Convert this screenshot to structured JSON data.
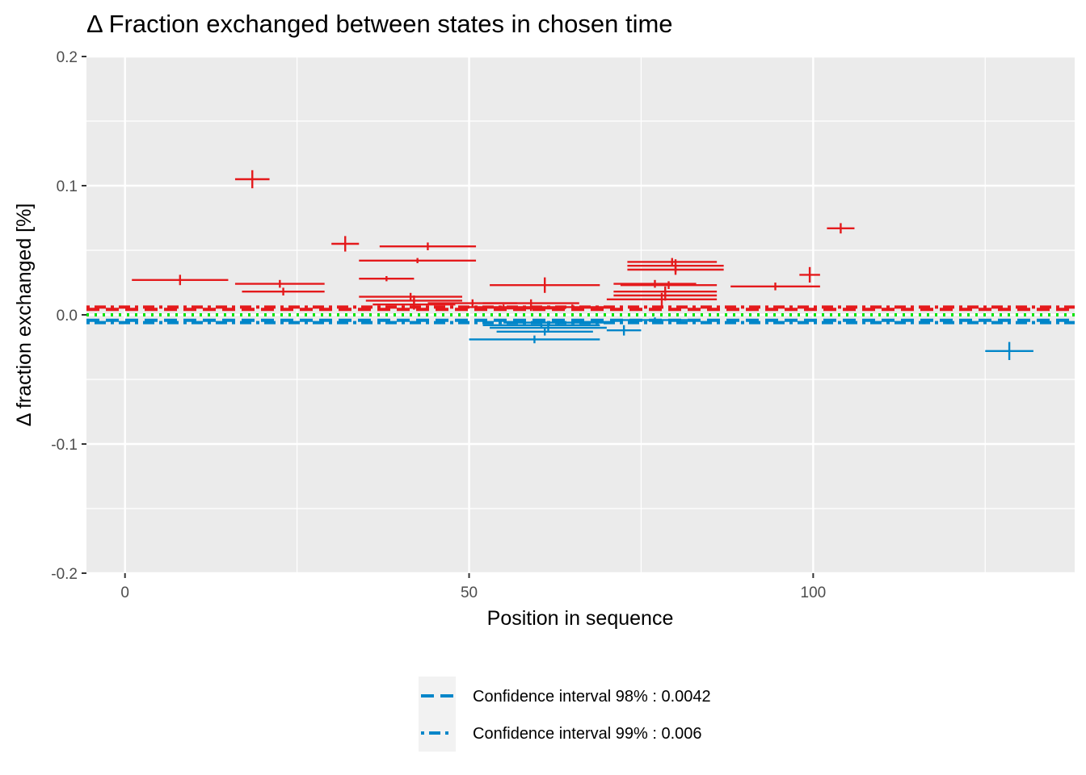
{
  "chart_data": {
    "type": "scatter",
    "title": "Δ Fraction exchanged between states in chosen time",
    "xlabel": "Position in sequence",
    "ylabel": "Δ fraction exchanged [%]",
    "xlim": [
      -5.6,
      138
    ],
    "ylim": [
      -0.2,
      0.2
    ],
    "x_ticks": [
      0,
      50,
      100
    ],
    "x_tick_labels": [
      "0",
      "50",
      "100"
    ],
    "y_ticks": [
      -0.2,
      -0.1,
      0.0,
      0.1,
      0.2
    ],
    "y_tick_labels": [
      "-0.2",
      "-0.1",
      "0.0",
      "0.1",
      "0.2"
    ],
    "grid": true,
    "panel_background": "#EBEBEB",
    "grid_color": "#FFFFFF",
    "colors": {
      "positive": "#E41A1C",
      "negative": "#0086C9",
      "zero_line": "#00E400"
    },
    "reference_lines": [
      {
        "y": 0.0042,
        "color": "#E41A1C",
        "linetype": "longdash"
      },
      {
        "y": 0.006,
        "color": "#E41A1C",
        "linetype": "dotdash"
      },
      {
        "y": -0.0042,
        "color": "#0086C9",
        "linetype": "longdash"
      },
      {
        "y": -0.006,
        "color": "#0086C9",
        "linetype": "dotdash"
      },
      {
        "y": 0.0,
        "color": "#00E400",
        "linetype": "dotted"
      }
    ],
    "series": [
      {
        "color": "#E41A1C",
        "points": [
          {
            "start": 1,
            "end": 15,
            "y": 0.027,
            "err": 0.004
          },
          {
            "start": 16,
            "end": 21,
            "y": 0.105,
            "err": 0.007
          },
          {
            "start": 16,
            "end": 29,
            "y": 0.024,
            "err": 0.003
          },
          {
            "start": 17,
            "end": 29,
            "y": 0.018,
            "err": 0.003
          },
          {
            "start": 30,
            "end": 34,
            "y": 0.055,
            "err": 0.006
          },
          {
            "start": 37,
            "end": 51,
            "y": 0.053,
            "err": 0.003
          },
          {
            "start": 34,
            "end": 51,
            "y": 0.042,
            "err": 0.002
          },
          {
            "start": 34,
            "end": 42,
            "y": 0.028,
            "err": 0.002
          },
          {
            "start": 34,
            "end": 49,
            "y": 0.014,
            "err": 0.003
          },
          {
            "start": 35,
            "end": 49,
            "y": 0.011,
            "err": 0.004
          },
          {
            "start": 36,
            "end": 48,
            "y": 0.008,
            "err": 0.004
          },
          {
            "start": 44,
            "end": 57,
            "y": 0.009,
            "err": 0.003
          },
          {
            "start": 53,
            "end": 69,
            "y": 0.023,
            "err": 0.006
          },
          {
            "start": 50,
            "end": 60,
            "y": 0.006,
            "err": 0.002
          },
          {
            "start": 52,
            "end": 66,
            "y": 0.009,
            "err": 0.003
          },
          {
            "start": 54,
            "end": 64,
            "y": 0.005,
            "err": 0.002
          },
          {
            "start": 60,
            "end": 70,
            "y": 0.006,
            "err": 0.002
          },
          {
            "start": 73,
            "end": 86,
            "y": 0.041,
            "err": 0.003
          },
          {
            "start": 73,
            "end": 87,
            "y": 0.038,
            "err": 0.005
          },
          {
            "start": 73,
            "end": 87,
            "y": 0.035,
            "err": 0.004
          },
          {
            "start": 72,
            "end": 86,
            "y": 0.023,
            "err": 0.003
          },
          {
            "start": 71,
            "end": 83,
            "y": 0.024,
            "err": 0.003
          },
          {
            "start": 71,
            "end": 86,
            "y": 0.018,
            "err": 0.004
          },
          {
            "start": 71,
            "end": 86,
            "y": 0.015,
            "err": 0.004
          },
          {
            "start": 70,
            "end": 86,
            "y": 0.012,
            "err": 0.005
          },
          {
            "start": 88,
            "end": 101,
            "y": 0.022,
            "err": 0.003
          },
          {
            "start": 98,
            "end": 101,
            "y": 0.031,
            "err": 0.006
          },
          {
            "start": 102,
            "end": 106,
            "y": 0.067,
            "err": 0.004
          }
        ]
      },
      {
        "color": "#0086C9",
        "points": [
          {
            "start": 50,
            "end": 69,
            "y": -0.019,
            "err": 0.003
          },
          {
            "start": 54,
            "end": 68,
            "y": -0.013,
            "err": 0.003
          },
          {
            "start": 53,
            "end": 70,
            "y": -0.01,
            "err": 0.003
          },
          {
            "start": 52,
            "end": 69,
            "y": -0.008,
            "err": 0.002
          },
          {
            "start": 55,
            "end": 71,
            "y": -0.006,
            "err": 0.002
          },
          {
            "start": 70,
            "end": 75,
            "y": -0.012,
            "err": 0.004
          },
          {
            "start": 72,
            "end": 82,
            "y": -0.004,
            "err": 0.002
          },
          {
            "start": 125,
            "end": 132,
            "y": -0.028,
            "err": 0.007
          }
        ]
      }
    ],
    "legend": {
      "position": "bottom",
      "entries": [
        {
          "label": "Confidence interval 98% : 0.0042",
          "color": "#0086C9",
          "linetype": "longdash"
        },
        {
          "label": "Confidence interval 99% : 0.006",
          "color": "#0086C9",
          "linetype": "dotdash"
        }
      ]
    }
  }
}
